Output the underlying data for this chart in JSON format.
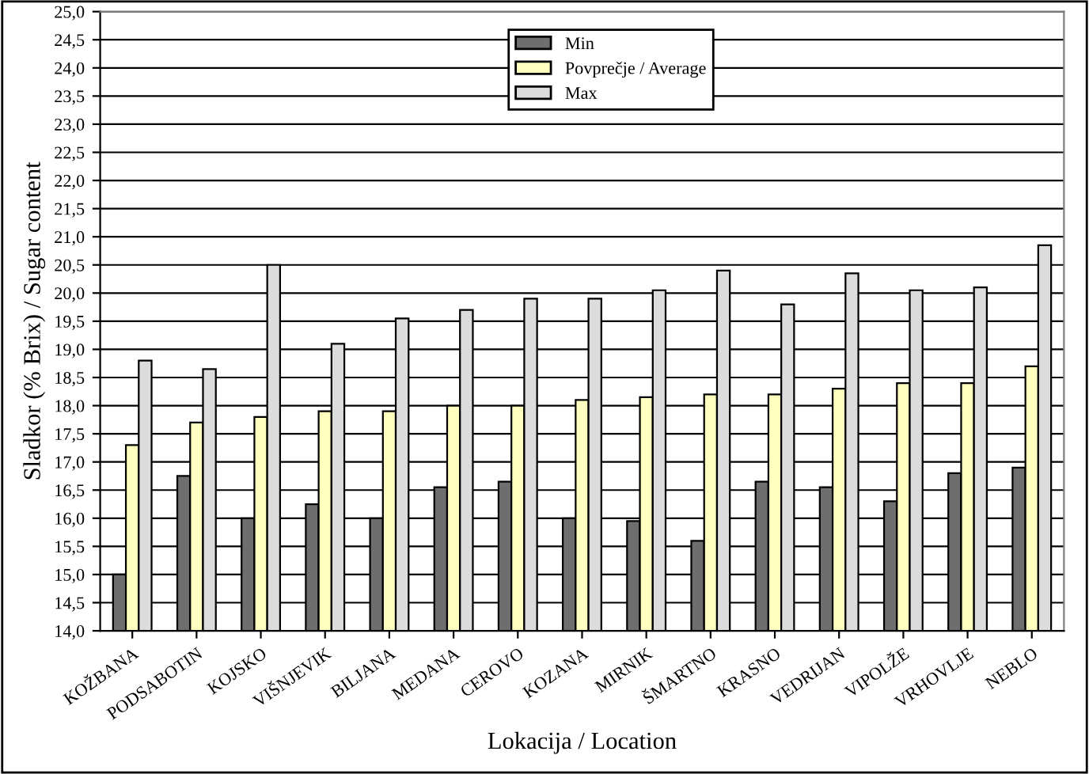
{
  "chart_data": {
    "type": "bar",
    "xlabel": "Lokacija / Location",
    "ylabel": "Sladkor (% Brix) / Sugar content",
    "categories": [
      "KOŽBANA",
      "PODSABOTIN",
      "KOJSKO",
      "VIŠNJEVIK",
      "BILJANA",
      "MEDANA",
      "CEROVO",
      "KOZANA",
      "MIRNIK",
      "ŠMARTNO",
      "KRASNO",
      "VEDRIJAN",
      "VIPOLŽE",
      "VRHOVLJE",
      "NEBLO"
    ],
    "series": [
      {
        "name": "Min",
        "color": "#6e6e6e",
        "values": [
          15.0,
          16.75,
          16.0,
          16.25,
          16.0,
          16.55,
          16.65,
          16.0,
          15.95,
          15.6,
          16.65,
          16.55,
          16.3,
          16.8,
          16.9
        ]
      },
      {
        "name": "Povprečje / Average",
        "color": "#ffffc0",
        "values": [
          17.3,
          17.7,
          17.8,
          17.9,
          17.9,
          18.0,
          18.0,
          18.1,
          18.15,
          18.2,
          18.2,
          18.3,
          18.4,
          18.4,
          18.7
        ]
      },
      {
        "name": "Max",
        "color": "#dcdcdc",
        "values": [
          18.8,
          18.65,
          20.5,
          19.1,
          19.55,
          19.7,
          19.9,
          19.9,
          20.05,
          20.4,
          19.8,
          20.35,
          20.05,
          20.1,
          20.85
        ]
      }
    ],
    "ylim": [
      14.0,
      25.0
    ],
    "yticks": [
      {
        "value": 14.0,
        "label": "14,0"
      },
      {
        "value": 14.5,
        "label": "14,5"
      },
      {
        "value": 15.0,
        "label": "15,0"
      },
      {
        "value": 15.5,
        "label": "15,5"
      },
      {
        "value": 16.0,
        "label": "16,0"
      },
      {
        "value": 16.5,
        "label": "16,5"
      },
      {
        "value": 17.0,
        "label": "17,0"
      },
      {
        "value": 17.5,
        "label": "17,5"
      },
      {
        "value": 18.0,
        "label": "18,0"
      },
      {
        "value": 18.5,
        "label": "18,5"
      },
      {
        "value": 19.0,
        "label": "19,0"
      },
      {
        "value": 19.5,
        "label": "19,5"
      },
      {
        "value": 20.0,
        "label": "20,0"
      },
      {
        "value": 20.5,
        "label": "20,5"
      },
      {
        "value": 21.0,
        "label": "21,0"
      },
      {
        "value": 21.5,
        "label": "21,5"
      },
      {
        "value": 22.0,
        "label": "22,0"
      },
      {
        "value": 22.5,
        "label": "22,5"
      },
      {
        "value": 23.0,
        "label": "23,0"
      },
      {
        "value": 23.5,
        "label": "23,5"
      },
      {
        "value": 24.0,
        "label": "24,0"
      },
      {
        "value": 24.5,
        "label": "24,5"
      },
      {
        "value": 25.0,
        "label": "25,0"
      }
    ],
    "grid": "y",
    "legend": "top"
  }
}
